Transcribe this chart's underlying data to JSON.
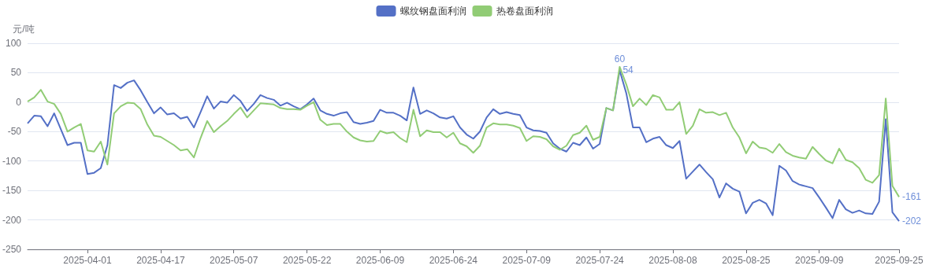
{
  "chart_data": {
    "type": "line",
    "ylabel": "元/吨",
    "categories": [
      null,
      null,
      null,
      null,
      null,
      null,
      null,
      null,
      null,
      "2025-04-01",
      null,
      null,
      null,
      null,
      null,
      null,
      null,
      null,
      null,
      null,
      "2025-04-17",
      null,
      null,
      null,
      null,
      null,
      null,
      null,
      null,
      null,
      null,
      "2025-05-07",
      null,
      null,
      null,
      null,
      null,
      null,
      null,
      null,
      null,
      null,
      "2025-05-22",
      null,
      null,
      null,
      null,
      null,
      null,
      null,
      null,
      null,
      null,
      "2025-06-09",
      null,
      null,
      null,
      null,
      null,
      null,
      null,
      null,
      null,
      null,
      "2025-06-24",
      null,
      null,
      null,
      null,
      null,
      null,
      null,
      null,
      null,
      null,
      "2025-07-09",
      null,
      null,
      null,
      null,
      null,
      null,
      null,
      null,
      null,
      null,
      "2025-07-24",
      null,
      null,
      null,
      null,
      null,
      null,
      null,
      null,
      null,
      null,
      "2025-08-08",
      null,
      null,
      null,
      null,
      null,
      null,
      null,
      null,
      null,
      null,
      "2025-08-25",
      null,
      null,
      null,
      null,
      null,
      null,
      null,
      null,
      null,
      null,
      "2025-09-09",
      null,
      null,
      null,
      null,
      null,
      null,
      null,
      null,
      null,
      null,
      null,
      "2025-09-25"
    ],
    "series": [
      {
        "name": "螺纹钢盘面利润",
        "color": "#5470c6",
        "values": [
          -36,
          -23,
          -24,
          -41,
          -19,
          -46,
          -73,
          -69,
          -69,
          -122,
          -120,
          -112,
          -73,
          29,
          24,
          33,
          37,
          20,
          0,
          -19,
          -9,
          -21,
          -19,
          -28,
          -25,
          -43,
          -17,
          10,
          -11,
          1,
          -1,
          12,
          2,
          -15,
          -3,
          12,
          7,
          4,
          -6,
          -1,
          -7,
          -12,
          -4,
          6,
          -14,
          -20,
          -23,
          -19,
          -17,
          -34,
          -37,
          -35,
          -32,
          -13,
          -18,
          -18,
          -23,
          -31,
          25,
          -20,
          -14,
          -19,
          -26,
          -28,
          -24,
          -43,
          -55,
          -62,
          -50,
          -26,
          -12,
          -20,
          -17,
          -20,
          -22,
          -43,
          -48,
          -49,
          -52,
          -70,
          -79,
          -84,
          -69,
          -73,
          -60,
          -79,
          -71,
          -10,
          -14,
          54,
          15,
          -43,
          -43,
          -68,
          -62,
          -59,
          -73,
          -78,
          -66,
          -130,
          -118,
          -106,
          -119,
          -131,
          -162,
          -138,
          -147,
          -152,
          -189,
          -171,
          -166,
          -172,
          -192,
          -108,
          -116,
          -134,
          -140,
          -143,
          -146,
          -162,
          -179,
          -197,
          -166,
          -182,
          -188,
          -184,
          -189,
          -190,
          -169,
          -29,
          -187,
          -202
        ],
        "value_labels": [
          null,
          null,
          null,
          null,
          null,
          null,
          null,
          null,
          null,
          null,
          null,
          null,
          null,
          null,
          null,
          null,
          null,
          null,
          null,
          null,
          null,
          null,
          null,
          null,
          null,
          null,
          null,
          null,
          null,
          null,
          null,
          null,
          null,
          null,
          null,
          null,
          null,
          null,
          null,
          null,
          null,
          null,
          null,
          null,
          null,
          null,
          null,
          null,
          null,
          null,
          null,
          null,
          null,
          null,
          null,
          null,
          null,
          null,
          null,
          null,
          null,
          null,
          null,
          null,
          null,
          null,
          null,
          null,
          null,
          null,
          null,
          null,
          null,
          null,
          null,
          null,
          null,
          null,
          null,
          null,
          null,
          null,
          null,
          null,
          null,
          null,
          null,
          null,
          null,
          "54",
          null,
          null,
          null,
          null,
          null,
          null,
          null,
          null,
          null,
          null,
          null,
          null,
          null,
          null,
          null,
          null,
          null,
          null,
          null,
          null,
          null,
          null,
          null,
          null,
          null,
          null,
          null,
          null,
          null,
          null,
          null,
          null,
          null,
          null,
          null,
          null,
          null,
          null,
          null,
          null,
          null,
          "-202"
        ]
      },
      {
        "name": "热卷盘面利润",
        "color": "#91cc75",
        "values": [
          1,
          8,
          21,
          1,
          -3,
          -20,
          -50,
          -43,
          -37,
          -82,
          -84,
          -67,
          -106,
          -19,
          -7,
          -1,
          -2,
          -12,
          -38,
          -57,
          -59,
          -66,
          -73,
          -82,
          -80,
          -94,
          -61,
          -32,
          -51,
          -41,
          -32,
          -20,
          -9,
          -26,
          -14,
          -2,
          -3,
          -4,
          -10,
          -12,
          -12,
          -13,
          -6,
          0,
          -30,
          -39,
          -37,
          -37,
          -50,
          -60,
          -65,
          -67,
          -66,
          -49,
          -53,
          -51,
          -61,
          -68,
          -13,
          -58,
          -48,
          -51,
          -51,
          -60,
          -52,
          -70,
          -75,
          -86,
          -74,
          -43,
          -36,
          -38,
          -38,
          -40,
          -44,
          -66,
          -58,
          -59,
          -63,
          -75,
          -81,
          -74,
          -56,
          -52,
          -40,
          -64,
          -59,
          -10,
          -14,
          60,
          30,
          -7,
          6,
          -5,
          12,
          8,
          -13,
          -13,
          0,
          -54,
          -40,
          -12,
          -18,
          -17,
          -22,
          -18,
          -43,
          -60,
          -87,
          -67,
          -77,
          -79,
          -86,
          -71,
          -85,
          -91,
          -94,
          -96,
          -76,
          -88,
          -99,
          -104,
          -79,
          -98,
          -102,
          -112,
          -132,
          -137,
          -124,
          6,
          -142,
          -161
        ],
        "value_labels": [
          null,
          null,
          null,
          null,
          null,
          null,
          null,
          null,
          null,
          null,
          null,
          null,
          null,
          null,
          null,
          null,
          null,
          null,
          null,
          null,
          null,
          null,
          null,
          null,
          null,
          null,
          null,
          null,
          null,
          null,
          null,
          null,
          null,
          null,
          null,
          null,
          null,
          null,
          null,
          null,
          null,
          null,
          null,
          null,
          null,
          null,
          null,
          null,
          null,
          null,
          null,
          null,
          null,
          null,
          null,
          null,
          null,
          null,
          null,
          null,
          null,
          null,
          null,
          null,
          null,
          null,
          null,
          null,
          null,
          null,
          null,
          null,
          null,
          null,
          null,
          null,
          null,
          null,
          null,
          null,
          null,
          null,
          null,
          null,
          null,
          null,
          null,
          null,
          null,
          "60",
          null,
          null,
          null,
          null,
          null,
          null,
          null,
          null,
          null,
          null,
          null,
          null,
          null,
          null,
          null,
          null,
          null,
          null,
          null,
          null,
          null,
          null,
          null,
          null,
          null,
          null,
          null,
          null,
          null,
          null,
          null,
          null,
          null,
          null,
          null,
          null,
          null,
          null,
          null,
          null,
          null,
          "-161"
        ]
      }
    ],
    "ylim": [
      -250,
      100
    ],
    "yticks": [
      -250,
      -200,
      -150,
      -100,
      -50,
      0,
      50,
      100
    ],
    "grid": "y",
    "legend": "top",
    "marker": "none",
    "line_style": "solid"
  }
}
